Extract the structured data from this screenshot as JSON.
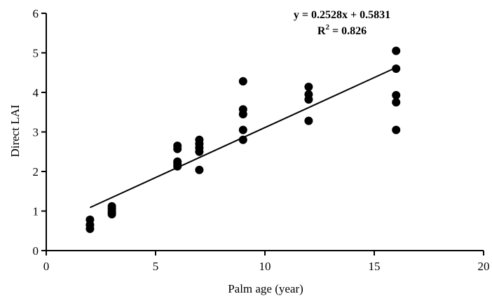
{
  "chart_data": {
    "type": "scatter",
    "xlabel": "Palm age (year)",
    "ylabel": "Direct LAI",
    "xlim": [
      0,
      20
    ],
    "ylim": [
      0,
      6
    ],
    "x_ticks": [
      0,
      5,
      10,
      15,
      20
    ],
    "y_ticks": [
      0,
      1,
      2,
      3,
      4,
      5,
      6
    ],
    "grid": false,
    "points": [
      {
        "x": 2,
        "y": 0.55
      },
      {
        "x": 2,
        "y": 0.65
      },
      {
        "x": 2,
        "y": 0.78
      },
      {
        "x": 3,
        "y": 0.92
      },
      {
        "x": 3,
        "y": 0.98
      },
      {
        "x": 3,
        "y": 1.05
      },
      {
        "x": 3,
        "y": 1.12
      },
      {
        "x": 6,
        "y": 2.13
      },
      {
        "x": 6,
        "y": 2.2
      },
      {
        "x": 6,
        "y": 2.25
      },
      {
        "x": 6,
        "y": 2.57
      },
      {
        "x": 6,
        "y": 2.65
      },
      {
        "x": 7,
        "y": 2.04
      },
      {
        "x": 7,
        "y": 2.5
      },
      {
        "x": 7,
        "y": 2.6
      },
      {
        "x": 7,
        "y": 2.7
      },
      {
        "x": 7,
        "y": 2.8
      },
      {
        "x": 9,
        "y": 2.8
      },
      {
        "x": 9,
        "y": 3.05
      },
      {
        "x": 9,
        "y": 3.45
      },
      {
        "x": 9,
        "y": 3.57
      },
      {
        "x": 9,
        "y": 4.28
      },
      {
        "x": 12,
        "y": 3.28
      },
      {
        "x": 12,
        "y": 3.82
      },
      {
        "x": 12,
        "y": 3.95
      },
      {
        "x": 12,
        "y": 4.14
      },
      {
        "x": 16,
        "y": 3.05
      },
      {
        "x": 16,
        "y": 3.75
      },
      {
        "x": 16,
        "y": 3.93
      },
      {
        "x": 16,
        "y": 4.6
      },
      {
        "x": 16,
        "y": 5.05
      }
    ],
    "trendline": {
      "slope": 0.2528,
      "intercept": 0.5831,
      "x_range": [
        2,
        16
      ]
    },
    "annotations": {
      "equation": "y = 0.2528x + 0.5831",
      "r2_prefix": "R",
      "r2_sup": "2",
      "r2_suffix": " = 0.826"
    }
  }
}
